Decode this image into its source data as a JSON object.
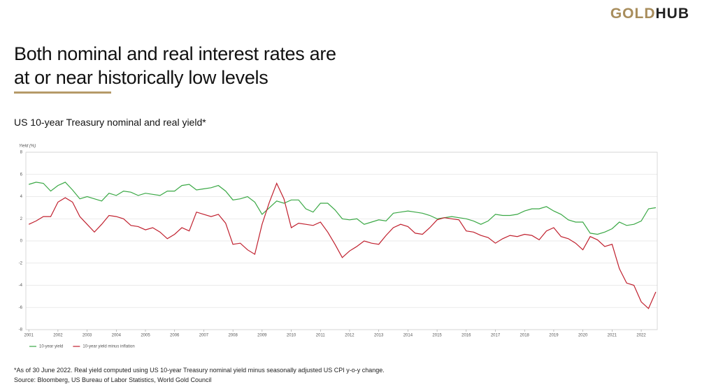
{
  "logo": {
    "first": "GOLD",
    "second": "HUB"
  },
  "header": {
    "title_lines": [
      "Both nominal and real interest rates are",
      "at or near historically low levels"
    ]
  },
  "chart_data": {
    "type": "line",
    "title": "US 10-year Treasury nominal and real yield*",
    "y_label": "Yield (%)",
    "x": [
      2001,
      2001.25,
      2001.5,
      2001.75,
      2002,
      2002.25,
      2002.5,
      2002.75,
      2003,
      2003.25,
      2003.5,
      2003.75,
      2004,
      2004.25,
      2004.5,
      2004.75,
      2005,
      2005.25,
      2005.5,
      2005.75,
      2006,
      2006.25,
      2006.5,
      2006.75,
      2007,
      2007.25,
      2007.5,
      2007.75,
      2008,
      2008.25,
      2008.5,
      2008.75,
      2009,
      2009.25,
      2009.5,
      2009.75,
      2010,
      2010.25,
      2010.5,
      2010.75,
      2011,
      2011.25,
      2011.5,
      2011.75,
      2012,
      2012.25,
      2012.5,
      2012.75,
      2013,
      2013.25,
      2013.5,
      2013.75,
      2014,
      2014.25,
      2014.5,
      2014.75,
      2015,
      2015.25,
      2015.5,
      2015.75,
      2016,
      2016.25,
      2016.5,
      2016.75,
      2017,
      2017.25,
      2017.5,
      2017.75,
      2018,
      2018.25,
      2018.5,
      2018.75,
      2019,
      2019.25,
      2019.5,
      2019.75,
      2020,
      2020.25,
      2020.5,
      2020.75,
      2021,
      2021.25,
      2021.5,
      2021.75,
      2022,
      2022.25,
      2022.5
    ],
    "series": [
      {
        "name": "10-year yield",
        "color": "#3aa845",
        "values": [
          5.1,
          5.3,
          5.2,
          4.5,
          5.0,
          5.3,
          4.6,
          3.8,
          4.0,
          3.8,
          3.6,
          4.3,
          4.1,
          4.5,
          4.4,
          4.1,
          4.3,
          4.2,
          4.1,
          4.5,
          4.5,
          5.0,
          5.1,
          4.6,
          4.7,
          4.8,
          5.0,
          4.5,
          3.7,
          3.8,
          4.0,
          3.5,
          2.4,
          3.0,
          3.6,
          3.4,
          3.7,
          3.7,
          2.9,
          2.6,
          3.4,
          3.4,
          2.8,
          2.0,
          1.9,
          2.0,
          1.5,
          1.7,
          1.9,
          1.8,
          2.5,
          2.6,
          2.7,
          2.6,
          2.5,
          2.3,
          2.0,
          2.1,
          2.2,
          2.1,
          2.0,
          1.8,
          1.5,
          1.8,
          2.4,
          2.3,
          2.3,
          2.4,
          2.7,
          2.9,
          2.9,
          3.1,
          2.7,
          2.4,
          1.9,
          1.7,
          1.7,
          0.7,
          0.6,
          0.8,
          1.1,
          1.7,
          1.4,
          1.5,
          1.8,
          2.9,
          3.0
        ]
      },
      {
        "name": "10-year yield minus inflation",
        "color": "#c0202e",
        "values": [
          1.5,
          1.8,
          2.2,
          2.2,
          3.5,
          3.9,
          3.5,
          2.2,
          1.5,
          0.8,
          1.5,
          2.3,
          2.2,
          2.0,
          1.4,
          1.3,
          1.0,
          1.2,
          0.8,
          0.2,
          0.6,
          1.2,
          0.9,
          2.6,
          2.4,
          2.2,
          2.4,
          1.6,
          -0.3,
          -0.2,
          -0.8,
          -1.2,
          1.5,
          3.5,
          5.2,
          3.8,
          1.2,
          1.6,
          1.5,
          1.4,
          1.7,
          0.8,
          -0.3,
          -1.5,
          -0.9,
          -0.5,
          0.0,
          -0.2,
          -0.3,
          0.5,
          1.2,
          1.5,
          1.3,
          0.7,
          0.6,
          1.2,
          1.9,
          2.1,
          2.0,
          1.9,
          0.9,
          0.8,
          0.5,
          0.3,
          -0.2,
          0.2,
          0.5,
          0.4,
          0.6,
          0.5,
          0.1,
          0.9,
          1.2,
          0.4,
          0.2,
          -0.2,
          -0.8,
          0.4,
          0.1,
          -0.5,
          -0.3,
          -2.5,
          -3.8,
          -4.0,
          -5.5,
          -6.1,
          -4.6
        ]
      }
    ],
    "xlim": [
      2000.9,
      2022.55
    ],
    "xticks": [
      2001,
      2002,
      2003,
      2004,
      2005,
      2006,
      2007,
      2008,
      2009,
      2010,
      2011,
      2012,
      2013,
      2014,
      2015,
      2016,
      2017,
      2018,
      2019,
      2020,
      2021,
      2022
    ],
    "ylim": [
      -8,
      8
    ],
    "yticks": [
      -8,
      -6,
      -4,
      -2,
      0,
      2,
      4,
      6,
      8
    ],
    "grid": true,
    "legend": "bottom-left"
  },
  "footnote": {
    "note": "*As of 30 June 2022. Real yield computed using US 10-year Treasury nominal yield minus seasonally adjusted US CPI y-o-y change.",
    "source": "Source: Bloomberg, US Bureau of Labor Statistics, World Gold Council"
  }
}
